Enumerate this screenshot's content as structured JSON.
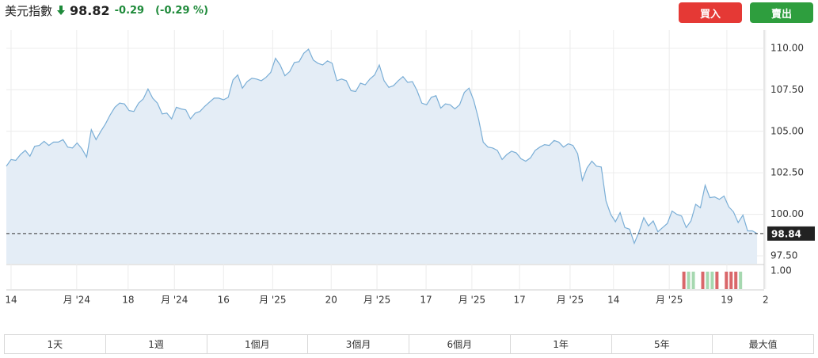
{
  "header": {
    "name": "美元指數",
    "price": "98.82",
    "change": "-0.29",
    "change_pct": "(-0.29 %)"
  },
  "buttons": {
    "buy": "買入",
    "sell": "賣出"
  },
  "range_tabs": [
    "1天",
    "1週",
    "1個月",
    "3個月",
    "6個月",
    "1年",
    "5年",
    "最大值"
  ],
  "last_value_label": "98.84",
  "chart_data": [
    {
      "type": "area",
      "color": "#7aaed6",
      "fill": "#e4edf6",
      "grid": true,
      "values": [
        102.9,
        103.3,
        103.25,
        103.6,
        103.85,
        103.5,
        104.1,
        104.15,
        104.4,
        104.15,
        104.35,
        104.35,
        104.5,
        104.05,
        104.0,
        104.3,
        103.95,
        103.45,
        105.1,
        104.5,
        105.0,
        105.45,
        106.0,
        106.45,
        106.7,
        106.65,
        106.25,
        106.2,
        106.7,
        106.95,
        107.55,
        107.0,
        106.7,
        106.05,
        106.1,
        105.75,
        106.45,
        106.35,
        106.3,
        105.75,
        106.1,
        106.2,
        106.5,
        106.75,
        107.0,
        107.0,
        106.9,
        107.05,
        108.1,
        108.4,
        107.6,
        108.0,
        108.2,
        108.15,
        108.05,
        108.25,
        108.55,
        109.4,
        109.0,
        108.35,
        108.6,
        109.15,
        109.2,
        109.7,
        109.95,
        109.3,
        109.1,
        109.0,
        109.25,
        109.1,
        108.05,
        108.15,
        108.05,
        107.45,
        107.4,
        107.9,
        107.8,
        108.15,
        108.4,
        109.0,
        108.05,
        107.65,
        107.75,
        108.05,
        108.3,
        107.95,
        108.0,
        107.45,
        106.7,
        106.6,
        107.05,
        107.15,
        106.4,
        106.65,
        106.6,
        106.35,
        106.6,
        107.35,
        107.6,
        106.85,
        105.75,
        104.35,
        104.05,
        104.0,
        103.85,
        103.3,
        103.6,
        103.8,
        103.7,
        103.35,
        103.2,
        103.4,
        103.85,
        104.05,
        104.2,
        104.15,
        104.45,
        104.35,
        104.05,
        104.25,
        104.15,
        103.65,
        102.05,
        102.8,
        103.2,
        102.9,
        102.85,
        100.8,
        100.0,
        99.55,
        100.1,
        99.2,
        99.1,
        98.25,
        98.95,
        99.8,
        99.3,
        99.6,
        98.95,
        99.2,
        99.45,
        100.2,
        100.0,
        99.9,
        99.2,
        99.6,
        100.6,
        100.4,
        101.75,
        101.0,
        101.05,
        100.9,
        101.1,
        100.45,
        100.15,
        99.5,
        99.95,
        99.0,
        99.0,
        98.84
      ],
      "xlim": [
        0,
        160.5
      ],
      "xticks": [
        {
          "value": 1.0,
          "label": "14"
        },
        {
          "value": 14.9,
          "label": "月 '24"
        },
        {
          "value": 25.8,
          "label": "18"
        },
        {
          "value": 35.6,
          "label": "月 '24"
        },
        {
          "value": 46.0,
          "label": "16"
        },
        {
          "value": 56.4,
          "label": "月 '25"
        },
        {
          "value": 68.8,
          "label": "20"
        },
        {
          "value": 78.5,
          "label": "月 '25"
        },
        {
          "value": 88.9,
          "label": "17"
        },
        {
          "value": 98.6,
          "label": "月 '25"
        },
        {
          "value": 108.7,
          "label": "17"
        },
        {
          "value": 119.4,
          "label": "月 '25"
        },
        {
          "value": 128.6,
          "label": "14"
        },
        {
          "value": 140.4,
          "label": "月 '25"
        },
        {
          "value": 152.6,
          "label": "19"
        },
        {
          "value": 160.8,
          "label": "2"
        }
      ],
      "ylim": [
        97.02,
        111.1
      ],
      "yticks": [
        {
          "value": 97.5,
          "label": "97.50"
        },
        {
          "value": 100,
          "label": "100.00"
        },
        {
          "value": 102.5,
          "label": "102.50"
        },
        {
          "value": 105,
          "label": "105.00"
        },
        {
          "value": 107.5,
          "label": "107.50"
        },
        {
          "value": 110,
          "label": "110.00"
        }
      ]
    },
    {
      "type": "bar",
      "x": [
        143.5,
        144.5,
        145.5,
        147.5,
        148.5,
        149.5,
        150.5,
        152.5,
        153.5,
        154.5,
        155.5
      ],
      "values": [
        0.96,
        0.96,
        0.96,
        0.96,
        0.96,
        0.96,
        0.96,
        0.96,
        0.96,
        0.96,
        0.96
      ],
      "colors": [
        "#d9676a",
        "#a6d8b0",
        "#a6d8b0",
        "#d9676a",
        "#a6d8b0",
        "#a6d8b0",
        "#d9676a",
        "#d9676a",
        "#d9676a",
        "#d9676a",
        "#a6d8b0"
      ],
      "xlim": [
        0,
        160.5
      ],
      "ylim": [
        0,
        1.22
      ],
      "yticks": [
        {
          "value": 1,
          "label": "1.00"
        }
      ]
    }
  ]
}
